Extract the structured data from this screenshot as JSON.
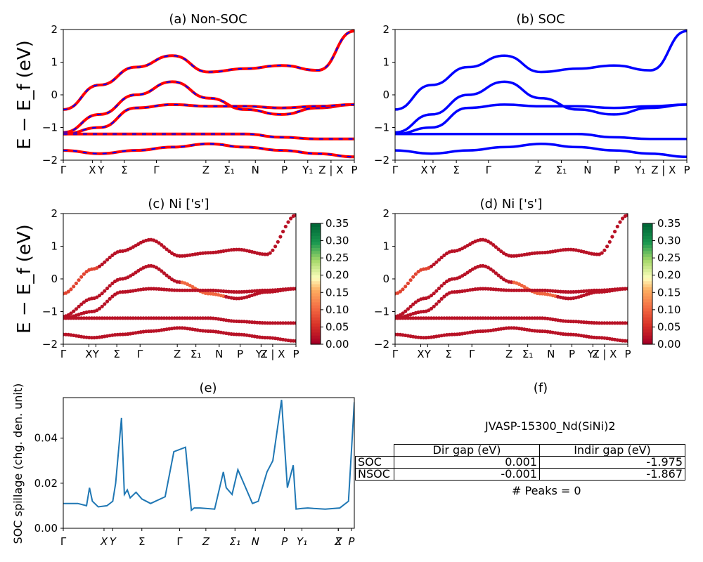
{
  "panel_titles": {
    "a": "(a) Non-SOC",
    "b": "(b) SOC",
    "c": "(c)  Ni ['s']",
    "d": "(d) Ni ['s']",
    "e": "(e)",
    "f": "(f)"
  },
  "y_axis_label": "E − E_f (eV)",
  "spillage_axis_label": "SOC spillage (chg. den. unit)",
  "colorbar_ticks": [
    "0.00",
    "0.05",
    "0.10",
    "0.15",
    "0.20",
    "0.25",
    "0.30",
    "0.35"
  ],
  "colors": {
    "non_soc": "#ff0000",
    "non_soc_dash": "#0000ff",
    "soc": "#0000ff",
    "spillage": "#1f77b4"
  },
  "table": {
    "title": "JVASP-15300_Nd(SiNi)2",
    "headers": [
      "Dir gap (eV)",
      "Indir gap (eV)"
    ],
    "rows": [
      {
        "label": "SOC",
        "dir": "0.001",
        "indir": "-1.975"
      },
      {
        "label": "NSOC",
        "dir": "-0.001",
        "indir": "-1.867"
      }
    ],
    "peaks": "# Peaks = 0"
  },
  "chart_data": [
    {
      "type": "line",
      "title": "(a) Non-SOC",
      "ylabel": "E − E_f (eV)",
      "ylim": [
        -2,
        2
      ],
      "yticks": [
        -2,
        -1,
        0,
        1,
        2
      ],
      "xtick_labels": [
        "Γ",
        "X",
        "Y",
        "Σ",
        "Γ",
        "Z",
        "Σ₁",
        "N",
        "P",
        "Y₁",
        "Z | X",
        "P"
      ],
      "series": [
        {
          "values": [
            -0.45,
            0.3,
            0.85,
            1.2,
            0.7,
            0.8,
            0.9,
            0.75,
            1.95
          ]
        },
        {
          "values": [
            -1.15,
            -0.6,
            0.0,
            0.4,
            -0.1,
            -0.45,
            -0.6,
            -0.4,
            -0.3
          ]
        },
        {
          "values": [
            -1.2,
            -1.0,
            -0.4,
            -0.3,
            -0.35,
            -0.35,
            -0.4,
            -0.35,
            -0.3
          ]
        },
        {
          "values": [
            -1.2,
            -1.2,
            -1.2,
            -1.2,
            -1.2,
            -1.2,
            -1.3,
            -1.35,
            -1.35
          ]
        },
        {
          "values": [
            -1.7,
            -1.8,
            -1.7,
            -1.6,
            -1.5,
            -1.6,
            -1.7,
            -1.8,
            -1.9
          ]
        }
      ]
    },
    {
      "type": "line",
      "title": "(b) SOC",
      "ylim": [
        -2,
        2
      ],
      "yticks": [
        -2,
        -1,
        0,
        1,
        2
      ],
      "xtick_labels": [
        "Γ",
        "X",
        "Y",
        "Σ",
        "Γ",
        "Z",
        "Σ₁",
        "N",
        "P",
        "Y₁",
        "Z | X",
        "P"
      ],
      "series": [
        {
          "values": [
            -0.45,
            0.3,
            0.85,
            1.2,
            0.7,
            0.8,
            0.9,
            0.75,
            1.95
          ]
        },
        {
          "values": [
            -1.15,
            -0.6,
            0.0,
            0.4,
            -0.1,
            -0.45,
            -0.6,
            -0.4,
            -0.3
          ]
        },
        {
          "values": [
            -1.2,
            -1.0,
            -0.4,
            -0.3,
            -0.35,
            -0.35,
            -0.4,
            -0.35,
            -0.3
          ]
        },
        {
          "values": [
            -1.2,
            -1.2,
            -1.2,
            -1.2,
            -1.2,
            -1.2,
            -1.3,
            -1.35,
            -1.35
          ]
        },
        {
          "values": [
            -1.7,
            -1.8,
            -1.7,
            -1.6,
            -1.5,
            -1.6,
            -1.7,
            -1.8,
            -1.9
          ]
        }
      ]
    },
    {
      "type": "scatter",
      "title": "(c)  Ni ['s']",
      "ylim": [
        -2,
        2
      ],
      "colorbar_range": [
        0.0,
        0.35
      ],
      "xtick_labels": [
        "Γ",
        "X",
        "Y",
        "Σ",
        "Γ",
        "Z",
        "Σ₁",
        "N",
        "P",
        "Y₁",
        "Z | X",
        "P"
      ]
    },
    {
      "type": "scatter",
      "title": "(d) Ni ['s']",
      "ylim": [
        -2,
        2
      ],
      "colorbar_range": [
        0.0,
        0.35
      ],
      "xtick_labels": [
        "Γ",
        "X",
        "Y",
        "Σ",
        "Γ",
        "Z",
        "Σ₁",
        "N",
        "P",
        "Y₁",
        "Z | X",
        "P"
      ]
    },
    {
      "type": "line",
      "title": "(e)",
      "ylabel": "SOC spillage (chg. den. unit)",
      "ylim": [
        0,
        0.058
      ],
      "yticks": [
        "0.00",
        "0.02",
        "0.04"
      ],
      "xtick_labels": [
        "Γ",
        "X",
        "Y",
        "Σ",
        "Γ",
        "Z",
        "Σ₁",
        "N",
        "P",
        "Y₁",
        "Z",
        "X",
        "P"
      ],
      "x": [
        0,
        0.05,
        0.08,
        0.09,
        0.1,
        0.12,
        0.15,
        0.17,
        0.18,
        0.2,
        0.21,
        0.22,
        0.23,
        0.25,
        0.27,
        0.3,
        0.35,
        0.38,
        0.42,
        0.44,
        0.45,
        0.47,
        0.52,
        0.55,
        0.56,
        0.58,
        0.6,
        0.62,
        0.65,
        0.67,
        0.7,
        0.72,
        0.75,
        0.77,
        0.79,
        0.8,
        0.82,
        0.84,
        0.86,
        0.9,
        0.95,
        0.98,
        1.0
      ],
      "values": [
        0.011,
        0.011,
        0.01,
        0.018,
        0.012,
        0.0095,
        0.01,
        0.012,
        0.02,
        0.049,
        0.015,
        0.017,
        0.0135,
        0.016,
        0.013,
        0.011,
        0.014,
        0.034,
        0.036,
        0.008,
        0.009,
        0.009,
        0.0085,
        0.025,
        0.018,
        0.015,
        0.026,
        0.02,
        0.011,
        0.012,
        0.025,
        0.03,
        0.057,
        0.018,
        0.028,
        0.0085,
        0.0088,
        0.009,
        0.0088,
        0.0085,
        0.009,
        0.012,
        0.056
      ]
    }
  ]
}
